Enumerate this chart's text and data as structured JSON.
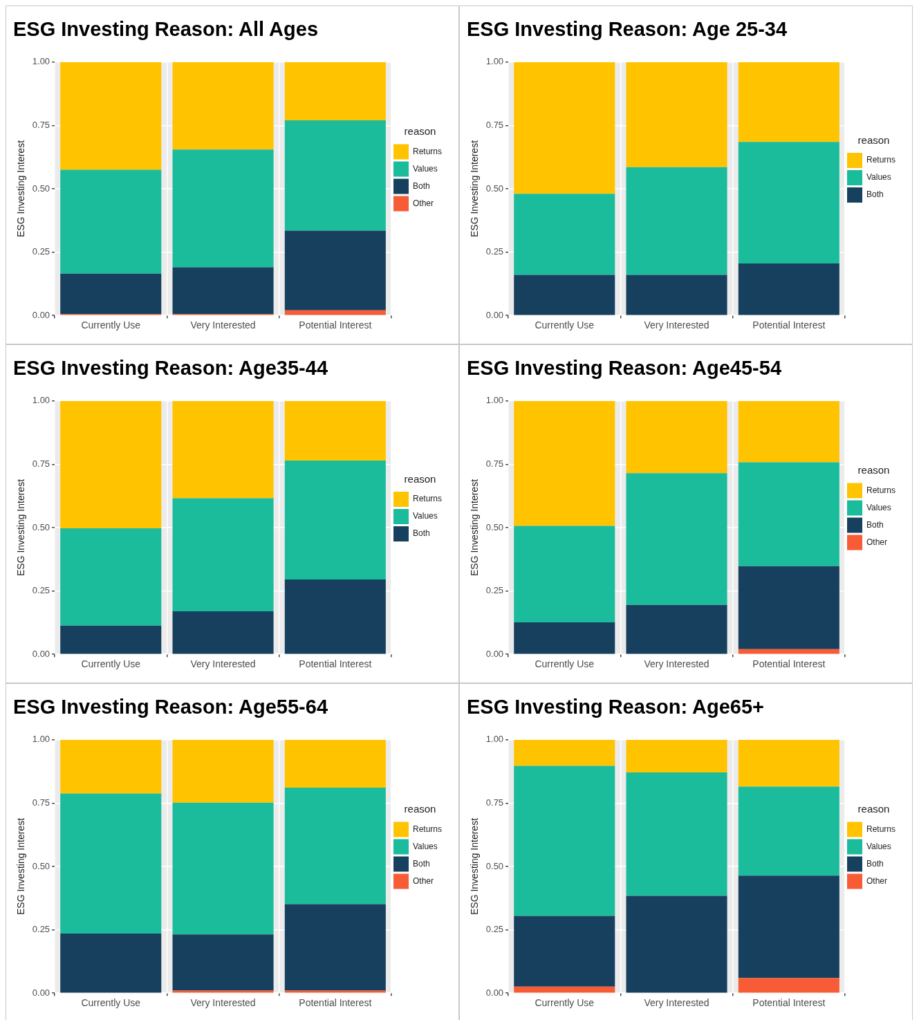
{
  "chart_data": [
    {
      "type": "bar",
      "stacked": true,
      "title": "ESG Investing Reason: All Ages",
      "ylabel": "ESG Investing Interest",
      "legend_title": "reason",
      "legend": "right",
      "grid": true,
      "categories": [
        "Currently Use",
        "Very Interested",
        "Potential Interest"
      ],
      "ylim": [
        0,
        1
      ],
      "yticks": [
        {
          "value": 0,
          "label": "0.00"
        },
        {
          "value": 0.25,
          "label": "0.25"
        },
        {
          "value": 0.5,
          "label": "0.50"
        },
        {
          "value": 0.75,
          "label": "0.75"
        },
        {
          "value": 1,
          "label": "1.00"
        }
      ],
      "series": [
        {
          "name": "Other",
          "color": "#f75c36",
          "values": [
            0.005,
            0.005,
            0.02
          ]
        },
        {
          "name": "Both",
          "color": "#17405e",
          "values": [
            0.16,
            0.185,
            0.315
          ]
        },
        {
          "name": "Values",
          "color": "#1abc9c",
          "values": [
            0.41,
            0.465,
            0.435
          ]
        },
        {
          "name": "Returns",
          "color": "#ffc300",
          "values": [
            0.425,
            0.345,
            0.23
          ]
        }
      ]
    },
    {
      "type": "bar",
      "stacked": true,
      "title": "ESG Investing Reason: Age 25-34",
      "ylabel": "ESG Investing Interest",
      "legend_title": "reason",
      "legend": "right",
      "grid": true,
      "categories": [
        "Currently Use",
        "Very Interested",
        "Potential Interest"
      ],
      "ylim": [
        0,
        1
      ],
      "yticks": [
        {
          "value": 0,
          "label": "0.00"
        },
        {
          "value": 0.25,
          "label": "0.25"
        },
        {
          "value": 0.5,
          "label": "0.50"
        },
        {
          "value": 0.75,
          "label": "0.75"
        },
        {
          "value": 1,
          "label": "1.00"
        }
      ],
      "series": [
        {
          "name": "Both",
          "color": "#17405e",
          "values": [
            0.16,
            0.16,
            0.205
          ]
        },
        {
          "name": "Values",
          "color": "#1abc9c",
          "values": [
            0.32,
            0.425,
            0.48
          ]
        },
        {
          "name": "Returns",
          "color": "#ffc300",
          "values": [
            0.52,
            0.415,
            0.315
          ]
        }
      ]
    },
    {
      "type": "bar",
      "stacked": true,
      "title": "ESG Investing Reason: Age35-44",
      "ylabel": "ESG Investing Interest",
      "legend_title": "reason",
      "legend": "right",
      "grid": true,
      "categories": [
        "Currently Use",
        "Very Interested",
        "Potential Interest"
      ],
      "ylim": [
        0,
        1
      ],
      "yticks": [
        {
          "value": 0,
          "label": "0.00"
        },
        {
          "value": 0.25,
          "label": "0.25"
        },
        {
          "value": 0.5,
          "label": "0.50"
        },
        {
          "value": 0.75,
          "label": "0.75"
        },
        {
          "value": 1,
          "label": "1.00"
        }
      ],
      "series": [
        {
          "name": "Both",
          "color": "#17405e",
          "values": [
            0.113,
            0.17,
            0.295
          ]
        },
        {
          "name": "Values",
          "color": "#1abc9c",
          "values": [
            0.384,
            0.446,
            0.47
          ]
        },
        {
          "name": "Returns",
          "color": "#ffc300",
          "values": [
            0.503,
            0.384,
            0.235
          ]
        }
      ]
    },
    {
      "type": "bar",
      "stacked": true,
      "title": "ESG Investing Reason: Age45-54",
      "ylabel": "ESG Investing Interest",
      "legend_title": "reason",
      "legend": "right",
      "grid": true,
      "categories": [
        "Currently Use",
        "Very Interested",
        "Potential Interest"
      ],
      "ylim": [
        0,
        1
      ],
      "yticks": [
        {
          "value": 0,
          "label": "0.00"
        },
        {
          "value": 0.25,
          "label": "0.25"
        },
        {
          "value": 0.5,
          "label": "0.50"
        },
        {
          "value": 0.75,
          "label": "0.75"
        },
        {
          "value": 1,
          "label": "1.00"
        }
      ],
      "series": [
        {
          "name": "Other",
          "color": "#f75c36",
          "values": [
            0,
            0,
            0.02
          ]
        },
        {
          "name": "Both",
          "color": "#17405e",
          "values": [
            0.126,
            0.195,
            0.328
          ]
        },
        {
          "name": "Values",
          "color": "#1abc9c",
          "values": [
            0.381,
            0.52,
            0.41
          ]
        },
        {
          "name": "Returns",
          "color": "#ffc300",
          "values": [
            0.493,
            0.285,
            0.242
          ]
        }
      ]
    },
    {
      "type": "bar",
      "stacked": true,
      "title": "ESG Investing Reason: Age55-64",
      "ylabel": "ESG Investing Interest",
      "legend_title": "reason",
      "legend": "right",
      "grid": true,
      "categories": [
        "Currently Use",
        "Very Interested",
        "Potential Interest"
      ],
      "ylim": [
        0,
        1
      ],
      "yticks": [
        {
          "value": 0,
          "label": "0.00"
        },
        {
          "value": 0.25,
          "label": "0.25"
        },
        {
          "value": 0.5,
          "label": "0.50"
        },
        {
          "value": 0.75,
          "label": "0.75"
        },
        {
          "value": 1,
          "label": "1.00"
        }
      ],
      "series": [
        {
          "name": "Other",
          "color": "#f75c36",
          "values": [
            0,
            0.01,
            0.01
          ]
        },
        {
          "name": "Both",
          "color": "#17405e",
          "values": [
            0.235,
            0.222,
            0.341
          ]
        },
        {
          "name": "Values",
          "color": "#1abc9c",
          "values": [
            0.553,
            0.52,
            0.46
          ]
        },
        {
          "name": "Returns",
          "color": "#ffc300",
          "values": [
            0.212,
            0.248,
            0.189
          ]
        }
      ]
    },
    {
      "type": "bar",
      "stacked": true,
      "title": "ESG Investing Reason: Age65+",
      "ylabel": "ESG Investing Interest",
      "legend_title": "reason",
      "legend": "right",
      "grid": true,
      "categories": [
        "Currently Use",
        "Very Interested",
        "Potential Interest"
      ],
      "ylim": [
        0,
        1
      ],
      "yticks": [
        {
          "value": 0,
          "label": "0.00"
        },
        {
          "value": 0.25,
          "label": "0.25"
        },
        {
          "value": 0.5,
          "label": "0.50"
        },
        {
          "value": 0.75,
          "label": "0.75"
        },
        {
          "value": 1,
          "label": "1.00"
        }
      ],
      "series": [
        {
          "name": "Other",
          "color": "#f75c36",
          "values": [
            0.026,
            0,
            0.06
          ]
        },
        {
          "name": "Both",
          "color": "#17405e",
          "values": [
            0.279,
            0.384,
            0.404
          ]
        },
        {
          "name": "Values",
          "color": "#1abc9c",
          "values": [
            0.592,
            0.487,
            0.351
          ]
        },
        {
          "name": "Returns",
          "color": "#ffc300",
          "values": [
            0.103,
            0.129,
            0.185
          ]
        }
      ]
    }
  ]
}
